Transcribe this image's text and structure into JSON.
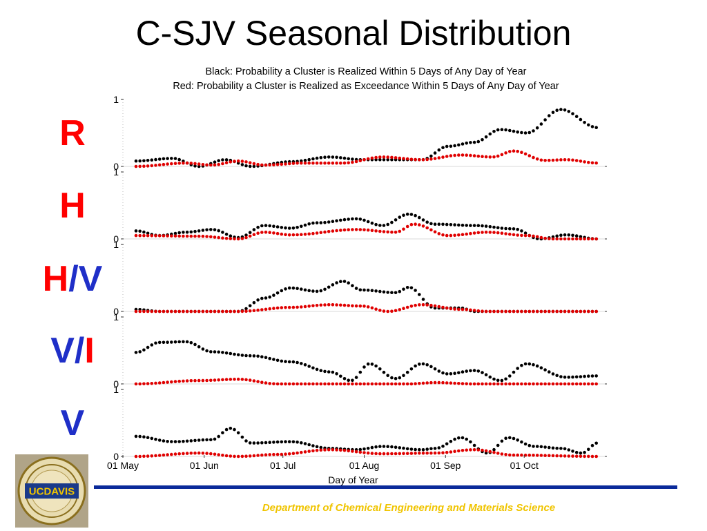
{
  "slide": {
    "title": "C-SJV Seasonal Distribution",
    "department": "Department of Chemical Engineering and Materials Science",
    "logo_text": "UCDAVIS"
  },
  "row_labels": [
    {
      "parts": [
        {
          "text": "R",
          "color": "#ff0000"
        }
      ]
    },
    {
      "parts": [
        {
          "text": "H",
          "color": "#ff0000"
        }
      ]
    },
    {
      "parts": [
        {
          "text": "H",
          "color": "#ff0000"
        },
        {
          "text": "/",
          "color": "#1f2fc8"
        },
        {
          "text": "V",
          "color": "#1f2fc8"
        }
      ]
    },
    {
      "parts": [
        {
          "text": "V",
          "color": "#1f2fc8"
        },
        {
          "text": "/",
          "color": "#1f2fc8"
        },
        {
          "text": "I",
          "color": "#ff0000"
        }
      ]
    },
    {
      "parts": [
        {
          "text": "V",
          "color": "#1f2fc8"
        }
      ]
    }
  ],
  "chart_data": {
    "type": "scatter",
    "title": "Black: Probability a Cluster is Realized Within 5 Days of Any Day of Year",
    "subtitle": "Red: Probability a Cluster is Realized as Exceedance Within 5 Days of Any Day of Year",
    "xlabel": "Day of Year",
    "x_ticks": [
      "01 May",
      "01 Jun",
      "01 Jul",
      "01 Aug",
      "01 Sep",
      "01 Oct"
    ],
    "x_tick_days": [
      121,
      152,
      182,
      213,
      244,
      274
    ],
    "xlim": [
      121,
      305
    ],
    "ylim": [
      0,
      1
    ],
    "y_tick_labels": [
      "0",
      "1"
    ],
    "grid": false,
    "series_colors": {
      "black": "#000000",
      "red": "#e00000"
    },
    "panels": [
      {
        "label": "R",
        "series": [
          {
            "color": "#000000",
            "points": [
              [
                126,
                0.08
              ],
              [
                140,
                0.12
              ],
              [
                150,
                0.0
              ],
              [
                160,
                0.1
              ],
              [
                170,
                0.0
              ],
              [
                185,
                0.07
              ],
              [
                200,
                0.14
              ],
              [
                212,
                0.1
              ],
              [
                225,
                0.1
              ],
              [
                235,
                0.1
              ],
              [
                245,
                0.3
              ],
              [
                255,
                0.36
              ],
              [
                265,
                0.55
              ],
              [
                275,
                0.5
              ],
              [
                288,
                0.85
              ],
              [
                302,
                0.58
              ]
            ]
          },
          {
            "color": "#e00000",
            "points": [
              [
                126,
                0.0
              ],
              [
                145,
                0.05
              ],
              [
                155,
                0.02
              ],
              [
                165,
                0.08
              ],
              [
                175,
                0.02
              ],
              [
                190,
                0.05
              ],
              [
                205,
                0.05
              ],
              [
                220,
                0.14
              ],
              [
                235,
                0.1
              ],
              [
                250,
                0.17
              ],
              [
                262,
                0.14
              ],
              [
                270,
                0.23
              ],
              [
                282,
                0.09
              ],
              [
                290,
                0.1
              ],
              [
                302,
                0.05
              ]
            ]
          }
        ]
      },
      {
        "label": "H",
        "series": [
          {
            "color": "#000000",
            "points": [
              [
                126,
                0.12
              ],
              [
                135,
                0.05
              ],
              [
                145,
                0.1
              ],
              [
                155,
                0.14
              ],
              [
                165,
                0.02
              ],
              [
                175,
                0.2
              ],
              [
                185,
                0.16
              ],
              [
                195,
                0.24
              ],
              [
                210,
                0.3
              ],
              [
                220,
                0.2
              ],
              [
                230,
                0.37
              ],
              [
                240,
                0.22
              ],
              [
                255,
                0.2
              ],
              [
                270,
                0.15
              ],
              [
                280,
                0.0
              ],
              [
                290,
                0.06
              ],
              [
                302,
                0.0
              ]
            ]
          },
          {
            "color": "#e00000",
            "points": [
              [
                126,
                0.05
              ],
              [
                150,
                0.04
              ],
              [
                165,
                0.0
              ],
              [
                175,
                0.1
              ],
              [
                185,
                0.06
              ],
              [
                210,
                0.14
              ],
              [
                225,
                0.1
              ],
              [
                232,
                0.22
              ],
              [
                245,
                0.05
              ],
              [
                260,
                0.1
              ],
              [
                275,
                0.05
              ],
              [
                285,
                0.0
              ],
              [
                302,
                0.0
              ]
            ]
          }
        ]
      },
      {
        "label": "H/V",
        "series": [
          {
            "color": "#000000",
            "points": [
              [
                126,
                0.03
              ],
              [
                135,
                0.0
              ],
              [
                165,
                0.0
              ],
              [
                175,
                0.2
              ],
              [
                185,
                0.35
              ],
              [
                195,
                0.3
              ],
              [
                205,
                0.45
              ],
              [
                212,
                0.32
              ],
              [
                225,
                0.28
              ],
              [
                230,
                0.36
              ],
              [
                240,
                0.05
              ],
              [
                250,
                0.05
              ],
              [
                255,
                0.0
              ],
              [
                302,
                0.0
              ]
            ]
          },
          {
            "color": "#e00000",
            "points": [
              [
                126,
                0.0
              ],
              [
                165,
                0.0
              ],
              [
                185,
                0.06
              ],
              [
                200,
                0.1
              ],
              [
                212,
                0.08
              ],
              [
                222,
                0.0
              ],
              [
                235,
                0.1
              ],
              [
                250,
                0.03
              ],
              [
                260,
                0.0
              ],
              [
                302,
                0.0
              ]
            ]
          }
        ]
      },
      {
        "label": "V/I",
        "series": [
          {
            "color": "#000000",
            "points": [
              [
                126,
                0.47
              ],
              [
                135,
                0.62
              ],
              [
                145,
                0.63
              ],
              [
                155,
                0.48
              ],
              [
                170,
                0.42
              ],
              [
                185,
                0.33
              ],
              [
                200,
                0.18
              ],
              [
                208,
                0.05
              ],
              [
                215,
                0.3
              ],
              [
                225,
                0.08
              ],
              [
                235,
                0.3
              ],
              [
                245,
                0.15
              ],
              [
                255,
                0.2
              ],
              [
                265,
                0.05
              ],
              [
                275,
                0.3
              ],
              [
                290,
                0.1
              ],
              [
                302,
                0.12
              ]
            ]
          },
          {
            "color": "#e00000",
            "points": [
              [
                126,
                0.0
              ],
              [
                150,
                0.05
              ],
              [
                165,
                0.07
              ],
              [
                180,
                0.0
              ],
              [
                230,
                0.0
              ],
              [
                240,
                0.02
              ],
              [
                255,
                0.0
              ],
              [
                302,
                0.0
              ]
            ]
          }
        ]
      },
      {
        "label": "V",
        "series": [
          {
            "color": "#000000",
            "points": [
              [
                126,
                0.3
              ],
              [
                140,
                0.22
              ],
              [
                155,
                0.25
              ],
              [
                162,
                0.42
              ],
              [
                170,
                0.2
              ],
              [
                185,
                0.22
              ],
              [
                200,
                0.12
              ],
              [
                210,
                0.1
              ],
              [
                220,
                0.15
              ],
              [
                235,
                0.1
              ],
              [
                240,
                0.12
              ],
              [
                250,
                0.28
              ],
              [
                260,
                0.05
              ],
              [
                268,
                0.28
              ],
              [
                278,
                0.15
              ],
              [
                288,
                0.12
              ],
              [
                296,
                0.05
              ],
              [
                302,
                0.2
              ]
            ]
          },
          {
            "color": "#e00000",
            "points": [
              [
                126,
                0.0
              ],
              [
                150,
                0.05
              ],
              [
                165,
                0.0
              ],
              [
                180,
                0.03
              ],
              [
                200,
                0.1
              ],
              [
                220,
                0.04
              ],
              [
                240,
                0.05
              ],
              [
                255,
                0.1
              ],
              [
                270,
                0.02
              ],
              [
                302,
                0.0
              ]
            ]
          }
        ]
      }
    ]
  }
}
